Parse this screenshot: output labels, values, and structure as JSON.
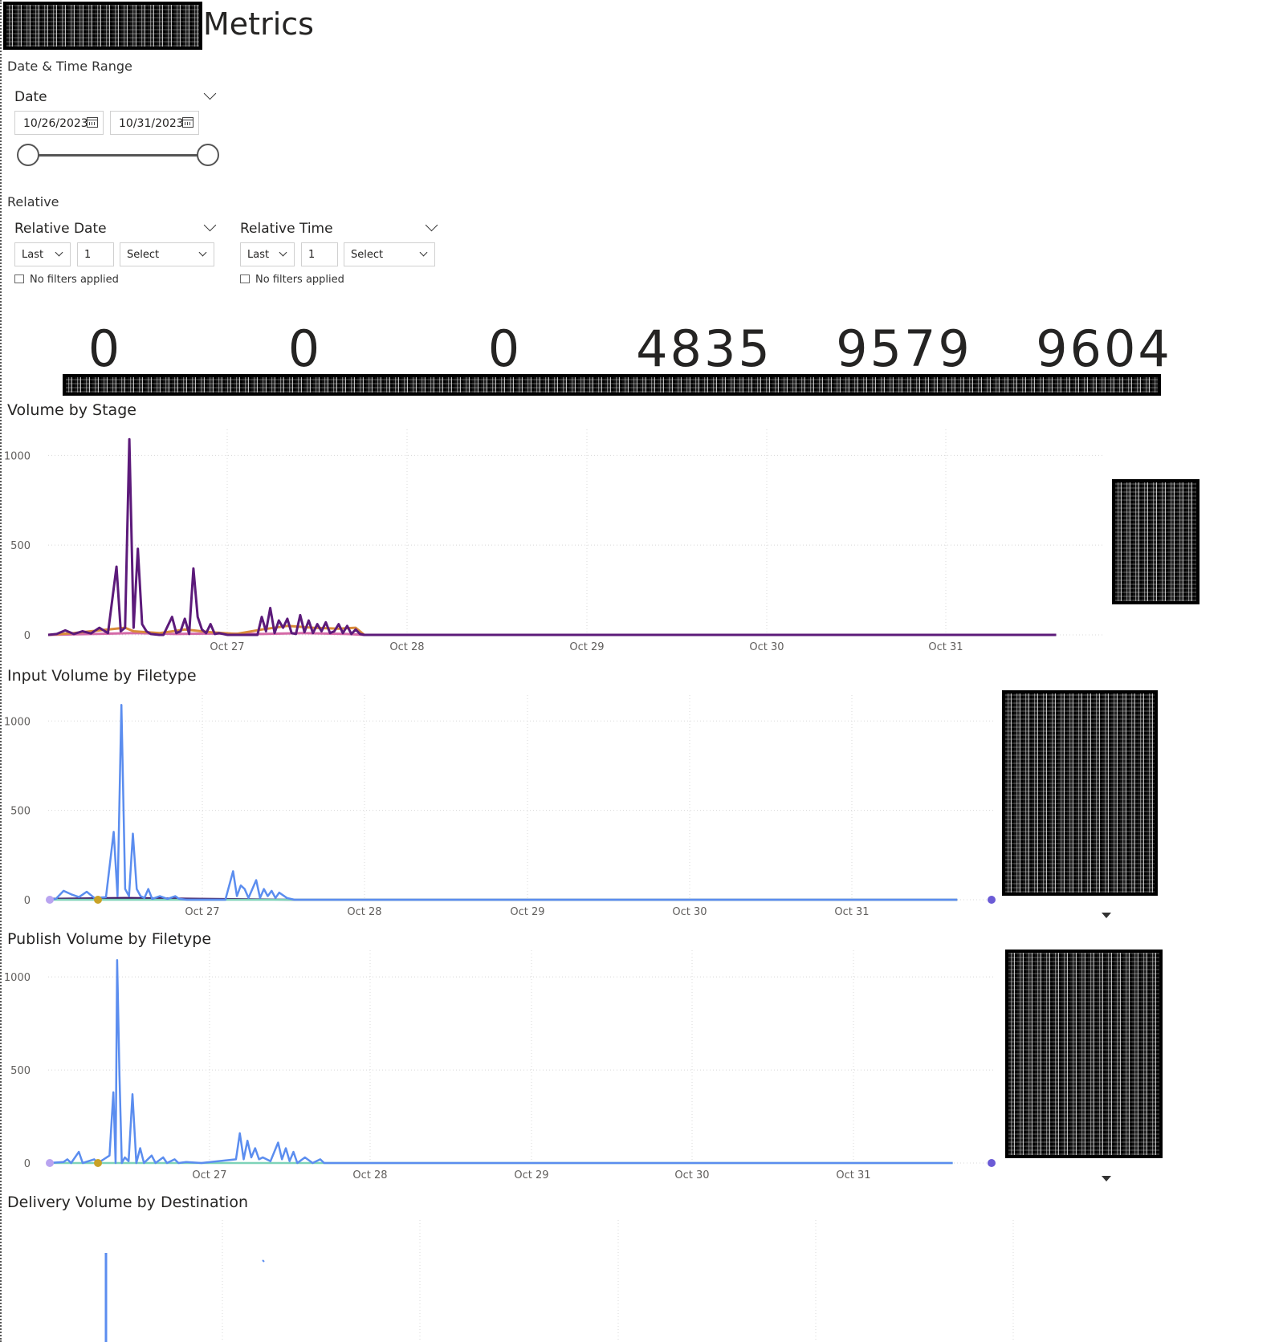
{
  "page": {
    "title": "Metrics"
  },
  "date_range": {
    "section_label": "Date & Time Range",
    "slicer_label": "Date",
    "start": "10/26/2023",
    "end": "10/31/2023"
  },
  "relative": {
    "section_label": "Relative",
    "date": {
      "label": "Relative Date",
      "period": "Last",
      "count": "1",
      "unit": "Select",
      "status": "No filters applied"
    },
    "time": {
      "label": "Relative Time",
      "period": "Last",
      "count": "1",
      "unit": "Select",
      "status": "No filters applied"
    }
  },
  "kpis": [
    "0",
    "0",
    "0",
    "4835",
    "9579",
    "9604"
  ],
  "colors": {
    "purple": "#5c1a7a",
    "dark_purple": "#3c1160",
    "orange": "#d98b3a",
    "pink": "#d46aa7",
    "blue": "#5b8def",
    "teal": "#7dd3b8",
    "lavender": "#b9a4f0",
    "gold": "#c9a227",
    "green": "#8fd16a",
    "navy": "#1e2a6b",
    "grid": "#d8d8d8"
  },
  "chart_data": [
    {
      "type": "line",
      "title": "Volume by Stage",
      "x_ticks": [
        "Oct 27",
        "Oct 28",
        "Oct 29",
        "Oct 30",
        "Oct 31"
      ],
      "xlim": [
        "Oct 26 00:00",
        "Oct 31 20:00"
      ],
      "y_ticks": [
        "0",
        "500",
        "1000"
      ],
      "ylim": [
        0,
        1100
      ],
      "grid": true,
      "legend_position": "right",
      "series": [
        {
          "color": "#5c1a7a",
          "points": [
            [
              0,
              0
            ],
            [
              0.1,
              5
            ],
            [
              0.2,
              25
            ],
            [
              0.3,
              5
            ],
            [
              0.4,
              20
            ],
            [
              0.5,
              8
            ],
            [
              0.6,
              40
            ],
            [
              0.7,
              10
            ],
            [
              0.8,
              380
            ],
            [
              0.85,
              20
            ],
            [
              0.9,
              40
            ],
            [
              0.95,
              1090
            ],
            [
              1.0,
              40
            ],
            [
              1.05,
              480
            ],
            [
              1.1,
              60
            ],
            [
              1.15,
              20
            ],
            [
              1.2,
              5
            ],
            [
              1.3,
              0
            ],
            [
              1.35,
              0
            ],
            [
              1.45,
              100
            ],
            [
              1.5,
              10
            ],
            [
              1.55,
              20
            ],
            [
              1.6,
              90
            ],
            [
              1.65,
              5
            ],
            [
              1.7,
              370
            ],
            [
              1.75,
              100
            ],
            [
              1.8,
              30
            ],
            [
              1.85,
              10
            ],
            [
              1.9,
              60
            ],
            [
              1.95,
              5
            ],
            [
              2.0,
              10
            ],
            [
              2.1,
              0
            ],
            [
              2.2,
              0
            ],
            [
              2.45,
              0
            ],
            [
              2.5,
              100
            ],
            [
              2.55,
              20
            ],
            [
              2.6,
              150
            ],
            [
              2.65,
              10
            ],
            [
              2.7,
              80
            ],
            [
              2.75,
              40
            ],
            [
              2.8,
              90
            ],
            [
              2.85,
              10
            ],
            [
              2.9,
              5
            ],
            [
              2.95,
              110
            ],
            [
              3.0,
              15
            ],
            [
              3.05,
              80
            ],
            [
              3.1,
              10
            ],
            [
              3.15,
              60
            ],
            [
              3.2,
              20
            ],
            [
              3.25,
              70
            ],
            [
              3.3,
              10
            ],
            [
              3.35,
              20
            ],
            [
              3.4,
              60
            ],
            [
              3.45,
              10
            ],
            [
              3.5,
              50
            ],
            [
              3.55,
              5
            ],
            [
              3.6,
              30
            ],
            [
              3.65,
              5
            ],
            [
              3.7,
              0
            ],
            [
              3.8,
              0
            ],
            [
              4.2,
              0
            ],
            [
              5.2,
              0
            ],
            [
              6.2,
              0
            ],
            [
              7.2,
              0
            ],
            [
              8.2,
              0
            ],
            [
              9.2,
              0
            ],
            [
              10.2,
              0
            ],
            [
              11.2,
              0
            ],
            [
              11.8,
              0
            ]
          ]
        },
        {
          "color": "#d98b3a",
          "points": [
            [
              0,
              0
            ],
            [
              0.3,
              10
            ],
            [
              0.6,
              25
            ],
            [
              0.9,
              40
            ],
            [
              1.0,
              20
            ],
            [
              1.3,
              10
            ],
            [
              1.6,
              30
            ],
            [
              1.9,
              15
            ],
            [
              2.2,
              5
            ],
            [
              2.5,
              30
            ],
            [
              2.8,
              50
            ],
            [
              3.1,
              40
            ],
            [
              3.4,
              35
            ],
            [
              3.6,
              40
            ],
            [
              3.7,
              0
            ],
            [
              11.8,
              0
            ]
          ]
        },
        {
          "color": "#d46aa7",
          "points": [
            [
              0,
              0
            ],
            [
              0.5,
              5
            ],
            [
              1.0,
              10
            ],
            [
              1.5,
              5
            ],
            [
              2.0,
              8
            ],
            [
              2.5,
              5
            ],
            [
              3.0,
              10
            ],
            [
              3.5,
              5
            ],
            [
              3.7,
              0
            ],
            [
              11.8,
              0
            ]
          ]
        }
      ]
    },
    {
      "type": "line",
      "title": "Input Volume by Filetype",
      "x_ticks": [
        "Oct 27",
        "Oct 28",
        "Oct 29",
        "Oct 30",
        "Oct 31"
      ],
      "xlim": [
        "Oct 26 00:00",
        "Oct 31 20:00"
      ],
      "y_ticks": [
        "0",
        "500",
        "1000"
      ],
      "ylim": [
        0,
        1100
      ],
      "grid": true,
      "legend_position": "right",
      "series": [
        {
          "color": "#5b8def",
          "points": [
            [
              0,
              0
            ],
            [
              0.1,
              5
            ],
            [
              0.2,
              50
            ],
            [
              0.3,
              30
            ],
            [
              0.4,
              15
            ],
            [
              0.5,
              45
            ],
            [
              0.6,
              10
            ],
            [
              0.75,
              15
            ],
            [
              0.85,
              380
            ],
            [
              0.9,
              20
            ],
            [
              0.95,
              1090
            ],
            [
              1.0,
              60
            ],
            [
              1.05,
              20
            ],
            [
              1.1,
              370
            ],
            [
              1.15,
              60
            ],
            [
              1.2,
              20
            ],
            [
              1.25,
              10
            ],
            [
              1.3,
              60
            ],
            [
              1.35,
              5
            ],
            [
              1.45,
              20
            ],
            [
              1.55,
              5
            ],
            [
              1.65,
              20
            ],
            [
              1.7,
              5
            ],
            [
              1.8,
              0
            ],
            [
              2.0,
              0
            ],
            [
              2.3,
              0
            ],
            [
              2.4,
              160
            ],
            [
              2.45,
              20
            ],
            [
              2.5,
              80
            ],
            [
              2.55,
              60
            ],
            [
              2.6,
              10
            ],
            [
              2.7,
              110
            ],
            [
              2.75,
              10
            ],
            [
              2.8,
              60
            ],
            [
              2.85,
              20
            ],
            [
              2.9,
              50
            ],
            [
              2.95,
              10
            ],
            [
              3.0,
              40
            ],
            [
              3.1,
              10
            ],
            [
              3.2,
              0
            ],
            [
              11.8,
              0
            ]
          ]
        },
        {
          "color": "#7dd3b8",
          "points": [
            [
              0,
              0
            ],
            [
              11.8,
              0
            ]
          ]
        },
        {
          "color": "#3c1160",
          "points": [
            [
              0,
              5
            ],
            [
              1.0,
              10
            ],
            [
              2.0,
              5
            ],
            [
              3.2,
              0
            ],
            [
              11.8,
              0
            ]
          ]
        }
      ]
    },
    {
      "type": "line",
      "title": "Publish Volume by Filetype",
      "x_ticks": [
        "Oct 27",
        "Oct 28",
        "Oct 29",
        "Oct 30",
        "Oct 31"
      ],
      "xlim": [
        "Oct 26 00:00",
        "Oct 31 20:00"
      ],
      "y_ticks": [
        "0",
        "500",
        "1000"
      ],
      "ylim": [
        0,
        1100
      ],
      "grid": true,
      "legend_position": "right",
      "series": [
        {
          "color": "#5b8def",
          "points": [
            [
              0,
              0
            ],
            [
              0.2,
              5
            ],
            [
              0.25,
              20
            ],
            [
              0.3,
              0
            ],
            [
              0.4,
              60
            ],
            [
              0.45,
              0
            ],
            [
              0.6,
              20
            ],
            [
              0.65,
              0
            ],
            [
              0.8,
              40
            ],
            [
              0.85,
              380
            ],
            [
              0.88,
              0
            ],
            [
              0.9,
              1090
            ],
            [
              0.93,
              470
            ],
            [
              0.96,
              0
            ],
            [
              1.0,
              30
            ],
            [
              1.05,
              10
            ],
            [
              1.1,
              370
            ],
            [
              1.15,
              0
            ],
            [
              1.2,
              80
            ],
            [
              1.25,
              0
            ],
            [
              1.35,
              40
            ],
            [
              1.4,
              0
            ],
            [
              1.5,
              30
            ],
            [
              1.55,
              0
            ],
            [
              1.65,
              20
            ],
            [
              1.7,
              0
            ],
            [
              1.8,
              5
            ],
            [
              2.0,
              0
            ],
            [
              2.45,
              20
            ],
            [
              2.5,
              160
            ],
            [
              2.55,
              20
            ],
            [
              2.6,
              120
            ],
            [
              2.65,
              30
            ],
            [
              2.7,
              80
            ],
            [
              2.75,
              20
            ],
            [
              2.8,
              30
            ],
            [
              2.9,
              10
            ],
            [
              3.0,
              110
            ],
            [
              3.05,
              20
            ],
            [
              3.1,
              80
            ],
            [
              3.15,
              10
            ],
            [
              3.2,
              60
            ],
            [
              3.25,
              0
            ],
            [
              3.35,
              30
            ],
            [
              3.45,
              0
            ],
            [
              3.55,
              20
            ],
            [
              3.6,
              0
            ],
            [
              11.8,
              0
            ]
          ]
        },
        {
          "color": "#7dd3b8",
          "points": [
            [
              0,
              0
            ],
            [
              11.8,
              0
            ]
          ]
        }
      ]
    }
  ],
  "delivery_chart": {
    "title": "Delivery Volume by Destination"
  }
}
